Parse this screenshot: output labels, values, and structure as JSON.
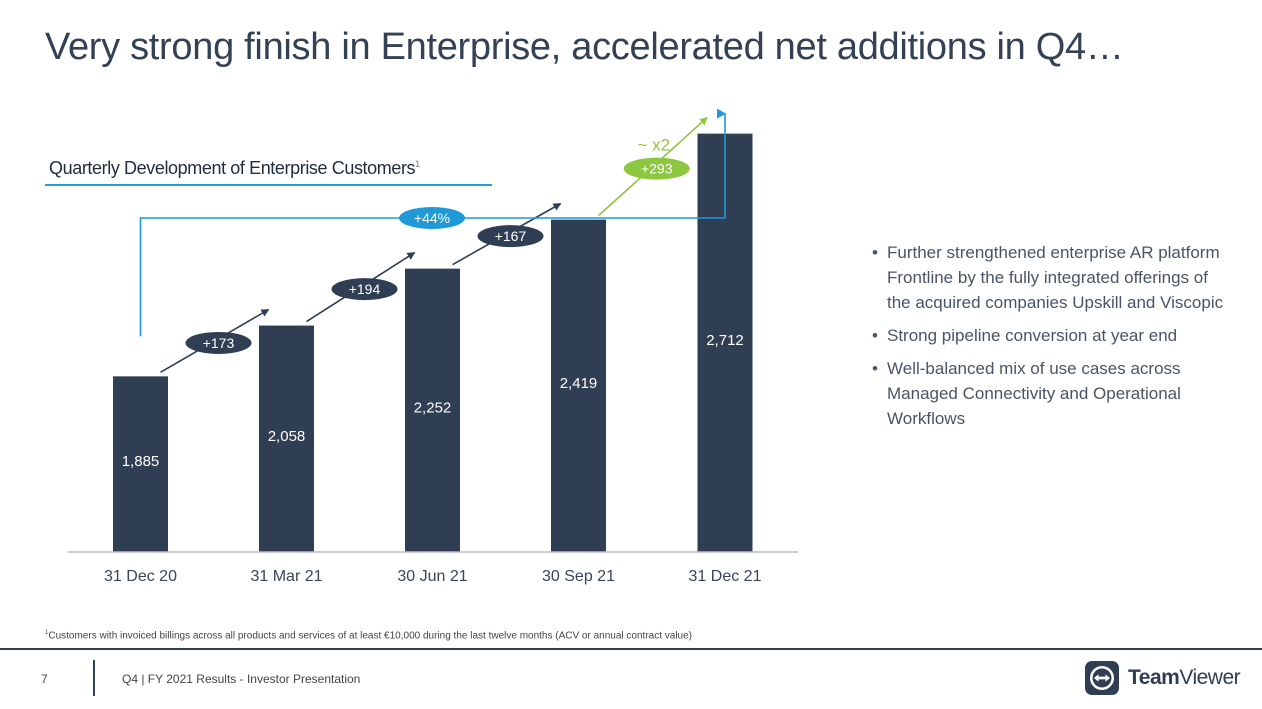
{
  "slide": {
    "title": "Very strong finish in Enterprise, accelerated net additions in Q4…",
    "chart_title": "Quarterly Development of Enterprise Customers",
    "chart_title_footnote_ref": "1",
    "bullets": [
      "Further strengthened enterprise AR platform Frontline by the fully integrated offerings of the acquired companies Upskill and Viscopic",
      "Strong pipeline conversion at year end",
      "Well-balanced mix of use cases across Managed Connectivity and Operational Workflows"
    ],
    "footnote_ref": "1",
    "footnote": "Customers with invoiced billings across all products and services of at least €10,000 during the last twelve months (ACV or annual contract value)",
    "page_number": "7",
    "footer_text": "Q4 | FY 2021 Results - Investor Presentation",
    "logo_bold": "Team",
    "logo_regular": "Viewer"
  },
  "colors": {
    "bar": "#2f3e52",
    "accent_blue": "#1f9ad6",
    "accent_green": "#8dc63f",
    "badge_dark": "#2f3e52"
  },
  "chart_data": {
    "type": "bar",
    "title": "Quarterly Development of Enterprise Customers",
    "categories": [
      "31 Dec 20",
      "31 Mar 21",
      "30 Jun 21",
      "30 Sep 21",
      "31 Dec 21"
    ],
    "values": [
      1885,
      2058,
      2252,
      2419,
      2712
    ],
    "value_labels": [
      "1,885",
      "2,058",
      "2,252",
      "2,419",
      "2,712"
    ],
    "net_additions": [
      "+173",
      "+194",
      "+167",
      "+293"
    ],
    "net_additions_highlight": "~ x2",
    "total_growth": "+44%",
    "xlabel": "",
    "ylabel": "",
    "grid": false
  }
}
